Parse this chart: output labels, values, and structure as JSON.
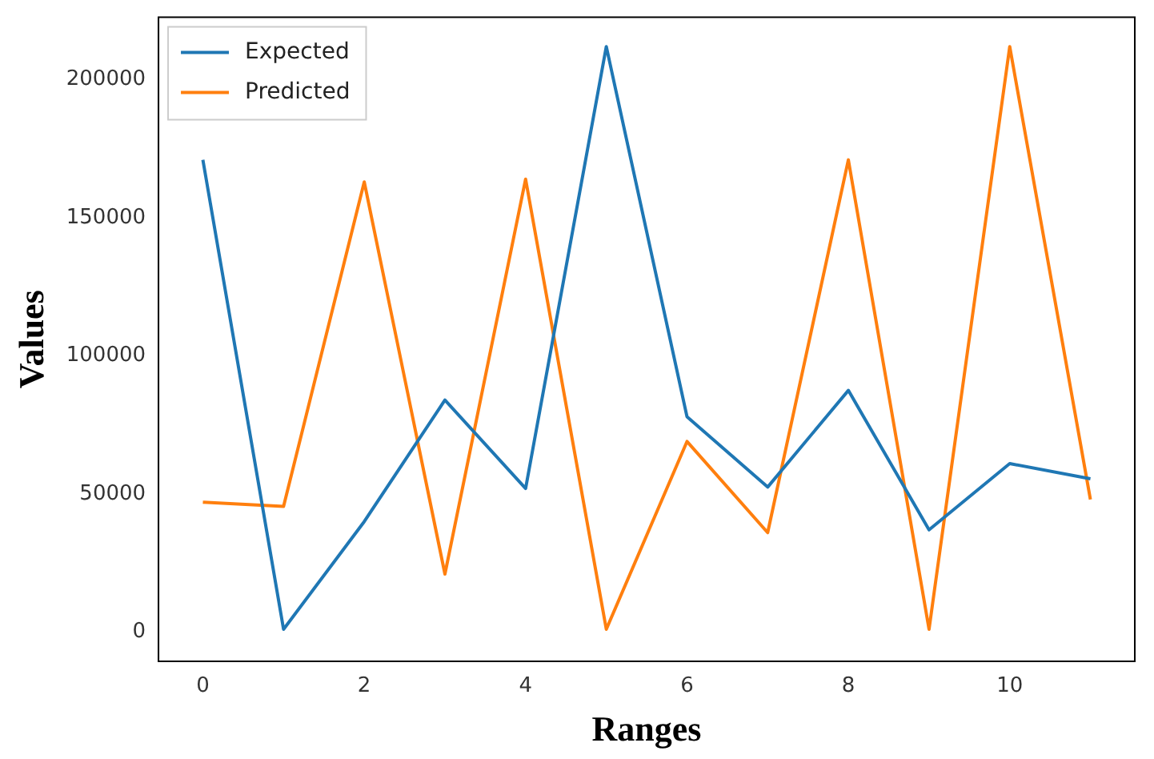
{
  "chart_data": {
    "type": "line",
    "xlabel": "Ranges",
    "ylabel": "Values",
    "x": [
      0,
      1,
      2,
      3,
      4,
      5,
      6,
      7,
      8,
      9,
      10,
      11
    ],
    "series": [
      {
        "name": "Expected",
        "color": "#1f77b4",
        "values": [
          171000,
          1000,
          40000,
          84000,
          52000,
          212000,
          78000,
          52500,
          87500,
          37000,
          61000,
          55500
        ]
      },
      {
        "name": "Predicted",
        "color": "#ff7f0e",
        "values": [
          47000,
          45500,
          163000,
          21000,
          164000,
          1000,
          69000,
          36000,
          171000,
          1000,
          212000,
          48000
        ]
      }
    ],
    "xlim": [
      -0.55,
      11.55
    ],
    "xticks": [
      0,
      2,
      4,
      6,
      8,
      10
    ],
    "ylim": [
      -10600,
      222600
    ],
    "yticks": [
      0,
      50000,
      100000,
      150000,
      200000
    ],
    "grid": false,
    "legend": "top left",
    "marker": "none",
    "line_style": "solid"
  }
}
